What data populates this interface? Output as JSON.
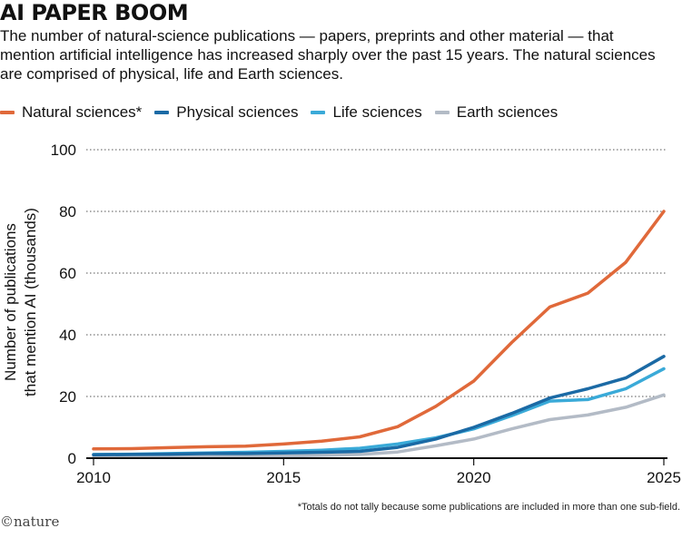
{
  "header": {
    "title": "AI PAPER BOOM",
    "subtitle": "The number of natural-science publications — papers, preprints and other material — that mention artificial intelligence has increased sharply over the past 15 years. The natural sciences are comprised of physical, life and Earth sciences."
  },
  "footnote": "*Totals do not tally because some publications are included in more than one sub-field.",
  "logo": {
    "symbol": "©",
    "text": "nature"
  },
  "chart_data": {
    "type": "line",
    "title": "AI PAPER BOOM",
    "xlabel": "",
    "ylabel": "Number of publications that mention AI (thousands)",
    "ylabel_lines": [
      "Number of publications",
      "that mention AI (thousands)"
    ],
    "xlim": [
      2010,
      2025
    ],
    "ylim": [
      0,
      100
    ],
    "xticks": [
      2010,
      2015,
      2020,
      2025
    ],
    "yticks": [
      0,
      20,
      40,
      60,
      80,
      100
    ],
    "grid": "horizontal dotted",
    "legend_position": "top",
    "x": [
      2010,
      2011,
      2012,
      2013,
      2014,
      2015,
      2016,
      2017,
      2018,
      2019,
      2020,
      2021,
      2022,
      2023,
      2024,
      2025
    ],
    "series": [
      {
        "name": "Natural sciences*",
        "color": "#e0693a",
        "values": [
          3.0,
          3.1,
          3.4,
          3.7,
          3.9,
          4.6,
          5.5,
          6.9,
          10.2,
          16.8,
          25.0,
          37.5,
          49.0,
          53.5,
          63.5,
          80.0
        ]
      },
      {
        "name": "Physical sciences",
        "color": "#1b6aa5",
        "values": [
          1.1,
          1.2,
          1.3,
          1.5,
          1.5,
          1.7,
          1.9,
          2.2,
          3.5,
          6.2,
          10.0,
          14.5,
          19.5,
          22.5,
          26.0,
          33.0
        ]
      },
      {
        "name": "Life sciences",
        "color": "#3aaad8",
        "values": [
          1.2,
          1.3,
          1.5,
          1.7,
          1.9,
          2.2,
          2.6,
          3.2,
          4.6,
          6.6,
          9.5,
          13.8,
          18.5,
          19.0,
          22.5,
          29.0
        ]
      },
      {
        "name": "Earth sciences",
        "color": "#b3bbc6",
        "values": [
          0.2,
          0.3,
          0.4,
          0.5,
          0.6,
          0.7,
          0.9,
          1.2,
          2.0,
          4.0,
          6.2,
          9.5,
          12.5,
          14.0,
          16.5,
          20.5
        ]
      }
    ]
  }
}
